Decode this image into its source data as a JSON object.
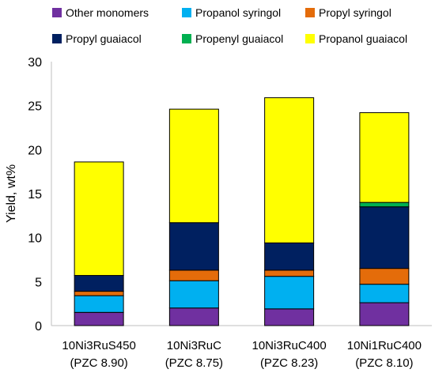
{
  "chart_data": {
    "type": "bar",
    "stacked": true,
    "categories": [
      [
        "10Ni3RuS450",
        "(PZC 8.90)"
      ],
      [
        "10Ni3RuC",
        "(PZC 8.75)"
      ],
      [
        "10Ni3RuC400",
        "(PZC 8.23)"
      ],
      [
        "10Ni1RuC400",
        "(PZC 8.10)"
      ]
    ],
    "ylabel": "Yield, wt%",
    "ylim": [
      0,
      30
    ],
    "yticks": [
      0,
      5,
      10,
      15,
      20,
      25,
      30
    ],
    "grid": false,
    "legend_position": "top",
    "series": [
      {
        "name": "Other monomers",
        "color": "#7030A0",
        "values": [
          1.5,
          2.0,
          1.9,
          2.6
        ]
      },
      {
        "name": "Propanol syringol",
        "color": "#00B0F0",
        "values": [
          1.9,
          3.1,
          3.7,
          2.1
        ]
      },
      {
        "name": "Propyl syringol",
        "color": "#E46C0A",
        "values": [
          0.5,
          1.2,
          0.7,
          1.8
        ]
      },
      {
        "name": "Propyl guaiacol",
        "color": "#002060",
        "values": [
          1.8,
          5.4,
          3.1,
          7.0
        ]
      },
      {
        "name": "Propenyl guaiacol",
        "color": "#00B050",
        "values": [
          0.0,
          0.0,
          0.0,
          0.5
        ]
      },
      {
        "name": "Propanol guaiacol",
        "color": "#FFFF00",
        "values": [
          12.9,
          12.9,
          16.5,
          10.2
        ]
      }
    ]
  }
}
